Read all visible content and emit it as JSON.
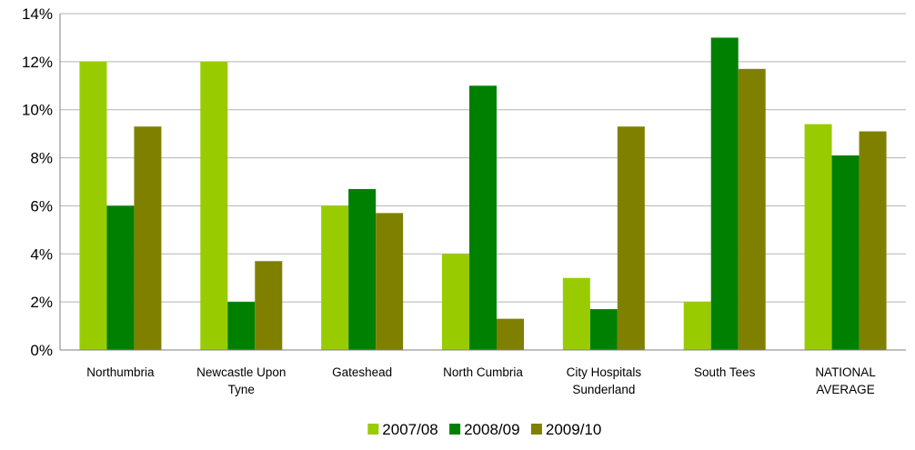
{
  "chart_data": {
    "type": "bar",
    "title": "",
    "xlabel": "",
    "ylabel": "",
    "ylim": [
      0,
      14
    ],
    "y_tick_step": 2,
    "y_tick_format": "percent",
    "grid": "horizontal",
    "legend": "bottom",
    "categories": [
      [
        "Northumbria"
      ],
      [
        "Newcastle Upon",
        "Tyne"
      ],
      [
        "Gateshead"
      ],
      [
        "North Cumbria"
      ],
      [
        "City Hospitals",
        "Sunderland"
      ],
      [
        "South Tees"
      ],
      [
        "NATIONAL",
        "AVERAGE"
      ]
    ],
    "series": [
      {
        "name": "2007/08",
        "color": "#99cc00",
        "values": [
          12,
          12,
          6,
          4,
          3,
          2,
          9.4
        ]
      },
      {
        "name": "2008/09",
        "color": "#008000",
        "values": [
          6,
          2,
          6.7,
          11,
          1.7,
          13,
          8.1
        ]
      },
      {
        "name": "2009/10",
        "color": "#808000",
        "values": [
          9.3,
          3.7,
          5.7,
          1.3,
          9.3,
          11.7,
          9.1
        ]
      }
    ]
  }
}
